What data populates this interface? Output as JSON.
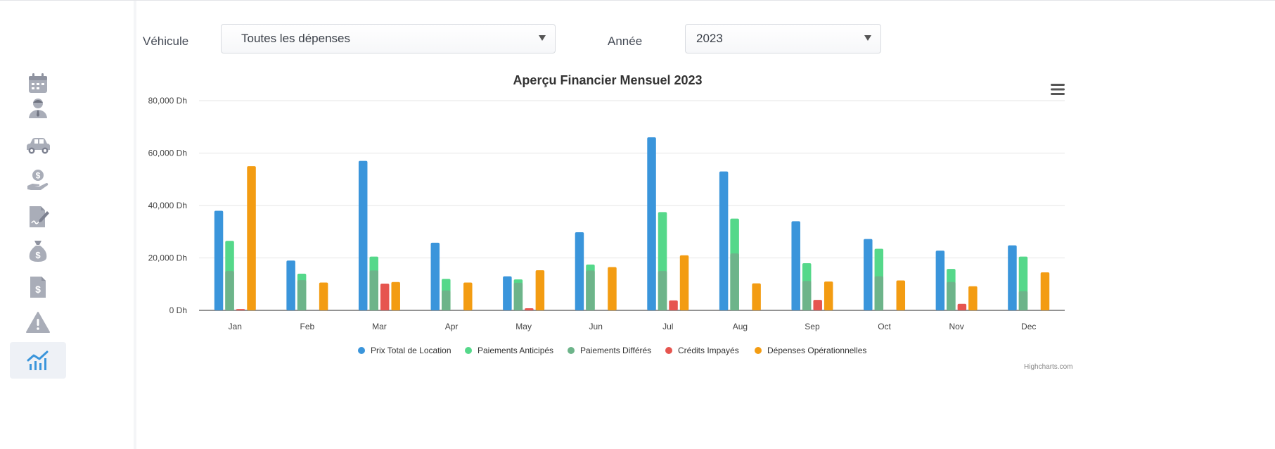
{
  "sidebar": {
    "items": [
      {
        "icon": "calendar-icon"
      },
      {
        "icon": "user-icon"
      },
      {
        "icon": "car-icon"
      },
      {
        "icon": "hand-money-icon"
      },
      {
        "icon": "contract-edit-icon"
      },
      {
        "icon": "money-bag-icon"
      },
      {
        "icon": "invoice-icon"
      },
      {
        "icon": "warning-icon"
      },
      {
        "icon": "chart-icon",
        "active": true
      }
    ]
  },
  "filters": {
    "vehicle_label": "Véhicule",
    "vehicle_value": "Toutes les dépenses",
    "year_label": "Année",
    "year_value": "2023"
  },
  "colors": {
    "prix": "#3a95db",
    "anticipes": "#55d88a",
    "differes": "#6db48a",
    "credits": "#e6554f",
    "depenses": "#f39c12"
  },
  "chart_data": {
    "type": "bar",
    "title": "Aperçu Financier Mensuel 2023",
    "categories": [
      "Jan",
      "Feb",
      "Mar",
      "Apr",
      "May",
      "Jun",
      "Jul",
      "Aug",
      "Sep",
      "Oct",
      "Nov",
      "Dec"
    ],
    "ylim": [
      0,
      80000
    ],
    "yticks": [
      "0 Dh",
      "20,000 Dh",
      "40,000 Dh",
      "60,000 Dh",
      "80,000 Dh"
    ],
    "grid": true,
    "legend_position": "bottom",
    "series": [
      {
        "name": "Prix Total de Location",
        "values": [
          38000,
          19000,
          57000,
          25800,
          13000,
          29800,
          66000,
          53000,
          34000,
          27200,
          22800,
          24800
        ]
      },
      {
        "name": "Paiements Anticipés",
        "values": [
          26500,
          14000,
          20500,
          12000,
          11800,
          17500,
          37500,
          35000,
          18000,
          23500,
          15800,
          20500
        ]
      },
      {
        "name": "Paiements Différés",
        "values": [
          15000,
          11500,
          15200,
          7600,
          10500,
          15200,
          15000,
          21700,
          11200,
          13000,
          10800,
          7300
        ]
      },
      {
        "name": "Crédits Impayés",
        "values": [
          500,
          0,
          10200,
          0,
          800,
          0,
          3800,
          0,
          4000,
          0,
          2500,
          0
        ]
      },
      {
        "name": "Dépenses Opérationnelles",
        "values": [
          55000,
          10600,
          10800,
          10600,
          15300,
          16500,
          21000,
          10300,
          11000,
          11400,
          9200,
          14500
        ]
      }
    ],
    "credits": "Highcharts.com"
  }
}
